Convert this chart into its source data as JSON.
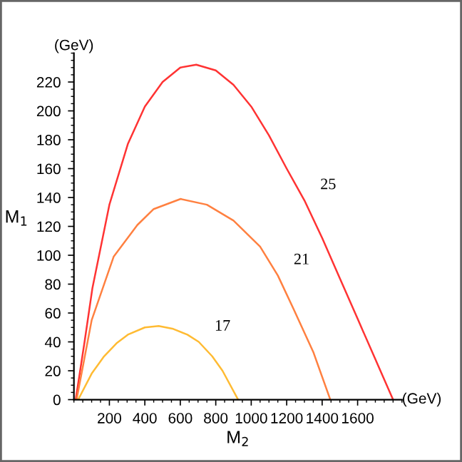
{
  "chart_data": {
    "type": "line",
    "xlabel": "M$_{2}$",
    "ylabel": "M$_{1}$",
    "xlim": [
      0,
      1850
    ],
    "ylim": [
      0,
      240
    ],
    "xticks": [
      200,
      400,
      600,
      800,
      1000,
      1200,
      1400,
      1600
    ],
    "yticks": [
      0,
      20,
      40,
      60,
      80,
      100,
      120,
      140,
      160,
      180,
      200,
      220
    ],
    "grid": false,
    "marker": "none",
    "line_style": "solid",
    "series": [
      {
        "name": "25",
        "color": "#ff3333",
        "x": [
          10,
          60,
          104,
          200,
          304,
          400,
          500,
          600,
          690,
          800,
          900,
          1000,
          1100,
          1200,
          1300,
          1400,
          1500,
          1600,
          1700,
          1800
        ],
        "values": [
          0,
          40,
          77,
          135,
          177,
          203,
          220,
          230,
          232,
          228,
          218,
          203,
          183,
          160,
          138,
          112,
          84,
          56,
          28,
          0
        ]
      },
      {
        "name": "21",
        "color": "#ff8040",
        "x": [
          15,
          100,
          224,
          358,
          450,
          602,
          750,
          900,
          1050,
          1150,
          1238,
          1350,
          1446
        ],
        "values": [
          0,
          55,
          99,
          121,
          132,
          139,
          135,
          124,
          106,
          86,
          63,
          33,
          0
        ]
      },
      {
        "name": "17",
        "color": "#ffbb33",
        "x": [
          24,
          100,
          170,
          240,
          304,
          400,
          478,
          560,
          640,
          704,
          780,
          838,
          926
        ],
        "values": [
          0,
          18,
          30,
          39,
          45,
          50,
          51,
          49,
          45,
          40,
          30,
          20,
          0
        ]
      }
    ],
    "annotations": [
      "(GeV)",
      "(GeV)"
    ]
  }
}
